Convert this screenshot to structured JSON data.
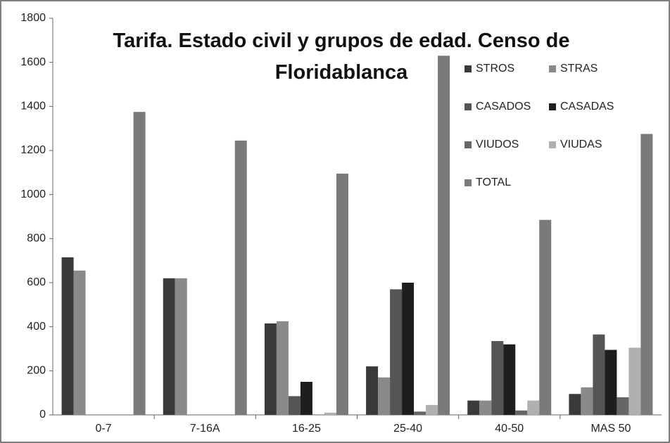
{
  "chart_data": {
    "type": "bar",
    "title": "Tarifa. Estado civil y grupos de edad. Censo de Floridablanca",
    "categories": [
      "0-7",
      "7-16A",
      "16-25",
      "25-40",
      "40-50",
      "MAS 50"
    ],
    "series": [
      {
        "name": "STROS",
        "color": "#3a3a3a",
        "values": [
          715,
          620,
          415,
          220,
          65,
          95
        ]
      },
      {
        "name": "STRAS",
        "color": "#8a8a8a",
        "values": [
          655,
          620,
          425,
          170,
          65,
          125
        ]
      },
      {
        "name": "CASADOS",
        "color": "#555555",
        "values": [
          0,
          0,
          85,
          570,
          335,
          365
        ]
      },
      {
        "name": "CASADAS",
        "color": "#1e1e1e",
        "values": [
          0,
          0,
          150,
          600,
          320,
          295
        ]
      },
      {
        "name": "VIUDOS",
        "color": "#666666",
        "values": [
          0,
          0,
          0,
          15,
          20,
          80
        ]
      },
      {
        "name": "VIUDAS",
        "color": "#b0b0b0",
        "values": [
          0,
          0,
          10,
          45,
          65,
          305
        ]
      },
      {
        "name": "TOTAL",
        "color": "#7a7a7a",
        "values": [
          1375,
          1245,
          1095,
          1630,
          885,
          1275
        ]
      }
    ],
    "ylim": [
      0,
      1800
    ],
    "yticks": [
      0,
      200,
      400,
      600,
      800,
      1000,
      1200,
      1400,
      1600,
      1800
    ],
    "legend": "top-right"
  }
}
